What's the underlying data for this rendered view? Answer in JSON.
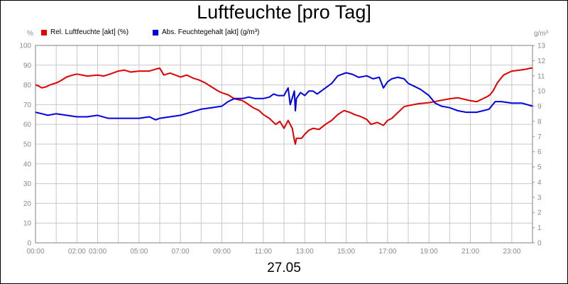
{
  "chart_data": {
    "type": "line",
    "title": "Luftfeuchte [pro Tag]",
    "xlabel": "27.05",
    "x_ticks": [
      "00:00",
      "02:00",
      "03:00",
      "05:00",
      "07:00",
      "09:00",
      "11:00",
      "13:00",
      "15:00",
      "17:00",
      "19:00",
      "21:00",
      "23:00"
    ],
    "x_tick_hours": [
      0,
      2,
      3,
      5,
      7,
      9,
      11,
      13,
      15,
      17,
      19,
      21,
      23
    ],
    "xlim": [
      0,
      24
    ],
    "y_left_unit": "%",
    "y_left_ticks": [
      "0",
      "10",
      "20",
      "30",
      "40",
      "50",
      "60",
      "70",
      "80",
      "90",
      "100"
    ],
    "ylim_left": [
      0,
      100
    ],
    "y_right_unit": "g/m³",
    "y_right_ticks": [
      "0",
      "1",
      "2",
      "3",
      "4",
      "5",
      "6",
      "7",
      "8",
      "9",
      "10",
      "11",
      "12",
      "13"
    ],
    "ylim_right": [
      0,
      13
    ],
    "grid": true,
    "series": [
      {
        "name": "Rel. Luftfeuchte [akt] (%)",
        "axis": "left",
        "color": "#e00000",
        "x": [
          0,
          0.15,
          0.3,
          0.5,
          0.7,
          1.0,
          1.2,
          1.5,
          1.8,
          2.0,
          2.5,
          3.0,
          3.3,
          3.6,
          4.0,
          4.3,
          4.6,
          5.0,
          5.3,
          5.5,
          5.8,
          6.0,
          6.2,
          6.5,
          7.0,
          7.3,
          7.6,
          7.9,
          8.2,
          8.5,
          8.8,
          9.0,
          9.3,
          9.6,
          10.0,
          10.3,
          10.5,
          10.8,
          11.0,
          11.3,
          11.6,
          11.8,
          12.0,
          12.2,
          12.4,
          12.5,
          12.55,
          12.6,
          12.7,
          12.85,
          13.0,
          13.2,
          13.4,
          13.7,
          14.0,
          14.3,
          14.6,
          14.9,
          15.2,
          15.4,
          15.7,
          16.0,
          16.2,
          16.5,
          16.8,
          17.0,
          17.2,
          17.5,
          17.8,
          18.0,
          18.5,
          19.0,
          19.5,
          20.0,
          20.4,
          20.8,
          21.0,
          21.3,
          21.6,
          21.8,
          21.95,
          22.1,
          22.3,
          22.6,
          23.0,
          23.4,
          23.7,
          23.9,
          24.0
        ],
        "values": [
          80,
          79.5,
          78.5,
          79,
          80,
          81,
          82,
          84,
          85,
          85.5,
          84.5,
          85,
          84.5,
          85.5,
          87,
          87.5,
          86.5,
          87,
          87,
          87,
          88,
          88.5,
          85,
          86,
          84,
          85,
          83.5,
          82.5,
          81,
          79,
          77,
          76,
          75,
          73,
          72,
          70,
          68.5,
          67,
          65,
          63,
          60,
          61.5,
          58,
          62,
          58,
          52,
          50,
          53,
          53,
          53,
          55,
          57,
          58,
          57.5,
          60,
          62,
          65,
          67,
          66,
          65,
          64,
          62.5,
          60,
          61,
          59.5,
          62,
          63,
          66,
          69,
          69.5,
          70.5,
          71,
          72,
          73,
          73.5,
          72.5,
          72,
          71.5,
          73,
          74,
          75,
          77,
          81,
          85,
          87,
          87.5,
          88,
          88.5,
          88.5
        ]
      },
      {
        "name": "Abs. Feuchtegehalt [akt] (g/m³)",
        "axis": "right",
        "color": "#0000e0",
        "x": [
          0,
          0.3,
          0.6,
          1.0,
          1.5,
          2.0,
          2.5,
          3.0,
          3.5,
          4.0,
          4.5,
          5.0,
          5.5,
          5.8,
          6.0,
          6.5,
          7.0,
          7.5,
          8.0,
          8.5,
          9.0,
          9.3,
          9.6,
          10.0,
          10.3,
          10.6,
          11.0,
          11.3,
          11.5,
          11.7,
          12.0,
          12.2,
          12.3,
          12.5,
          12.55,
          12.6,
          12.8,
          13.0,
          13.2,
          13.4,
          13.6,
          14.0,
          14.3,
          14.6,
          15.0,
          15.3,
          15.6,
          16.0,
          16.3,
          16.6,
          16.8,
          17.0,
          17.2,
          17.5,
          17.8,
          18.0,
          18.3,
          18.6,
          19.0,
          19.3,
          19.6,
          20.0,
          20.4,
          20.8,
          21.0,
          21.3,
          21.6,
          21.9,
          22.2,
          22.5,
          23.0,
          23.5,
          24.0
        ],
        "values": [
          8.6,
          8.5,
          8.4,
          8.5,
          8.4,
          8.3,
          8.3,
          8.4,
          8.2,
          8.2,
          8.2,
          8.2,
          8.3,
          8.1,
          8.2,
          8.3,
          8.4,
          8.6,
          8.8,
          8.9,
          9.0,
          9.3,
          9.5,
          9.5,
          9.6,
          9.5,
          9.5,
          9.6,
          9.8,
          9.7,
          9.7,
          10.2,
          9.1,
          10.0,
          8.7,
          9.5,
          9.9,
          9.7,
          10.0,
          10.0,
          9.8,
          10.2,
          10.5,
          11.0,
          11.2,
          11.1,
          10.9,
          11.0,
          10.8,
          10.9,
          10.2,
          10.6,
          10.8,
          10.9,
          10.8,
          10.5,
          10.3,
          10.1,
          9.7,
          9.2,
          9.0,
          8.9,
          8.7,
          8.6,
          8.6,
          8.6,
          8.7,
          8.8,
          9.3,
          9.3,
          9.2,
          9.2,
          9.0
        ]
      }
    ]
  }
}
